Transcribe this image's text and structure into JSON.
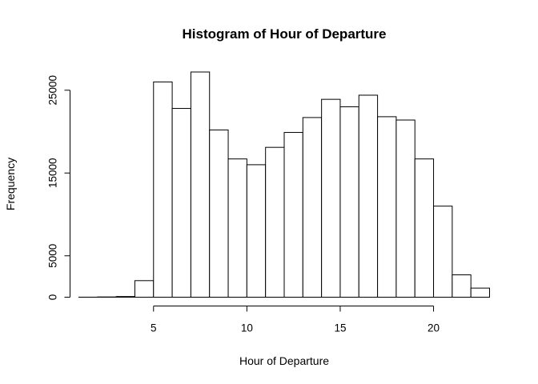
{
  "chart_data": {
    "type": "bar",
    "title": "Histogram of Hour of Departure",
    "xlabel": "Hour of Departure",
    "ylabel": "Frequency",
    "bin_edges": [
      1,
      2,
      3,
      4,
      5,
      6,
      7,
      8,
      9,
      10,
      11,
      12,
      13,
      14,
      15,
      16,
      17,
      18,
      19,
      20,
      21,
      22,
      23
    ],
    "values": [
      5,
      30,
      80,
      2000,
      26000,
      22800,
      27200,
      20200,
      16700,
      16000,
      18100,
      19900,
      21700,
      23900,
      23000,
      24400,
      21800,
      21400,
      16700,
      11000,
      2700,
      1100
    ],
    "xlim": [
      1,
      23
    ],
    "ylim": [
      0,
      27200
    ],
    "x_ticks": [
      5,
      10,
      15,
      20
    ],
    "y_ticks": [
      0,
      5000,
      15000,
      25000
    ],
    "x_tick_labels": [
      "5",
      "10",
      "15",
      "20"
    ],
    "y_tick_labels": [
      "0",
      "5000",
      "15000",
      "25000"
    ],
    "grid": false,
    "legend": "none"
  }
}
